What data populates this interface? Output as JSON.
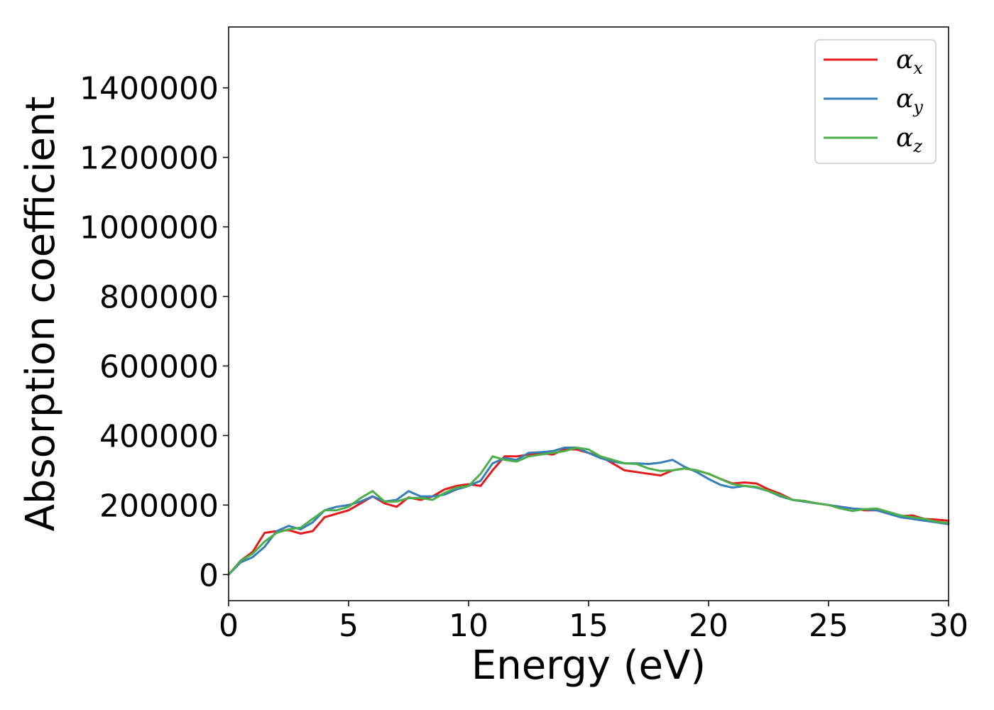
{
  "chart_data": {
    "type": "line",
    "xlabel": "Energy (eV)",
    "ylabel": "Absorption coefficient",
    "xlim": [
      0,
      30
    ],
    "ylim": [
      -75000,
      1575000
    ],
    "xticks": [
      0,
      5,
      10,
      15,
      20,
      25,
      30
    ],
    "yticks": [
      0,
      200000,
      400000,
      600000,
      800000,
      1000000,
      1200000,
      1400000
    ],
    "xtick_labels": [
      "0",
      "5",
      "10",
      "15",
      "20",
      "25",
      "30"
    ],
    "ytick_labels": [
      "0",
      "200000",
      "400000",
      "600000",
      "800000",
      "1000000",
      "1200000",
      "1400000"
    ],
    "grid": false,
    "legend_position": "top-right",
    "x": [
      0,
      0.5,
      1,
      1.5,
      2,
      2.5,
      3,
      3.5,
      4,
      4.5,
      5,
      5.5,
      6,
      6.5,
      7,
      7.5,
      8,
      8.5,
      9,
      9.5,
      10,
      10.5,
      11,
      11.5,
      12,
      12.5,
      13,
      13.5,
      14,
      14.5,
      15,
      15.5,
      16,
      16.5,
      17,
      17.5,
      18,
      18.5,
      19,
      19.5,
      20,
      20.5,
      21,
      21.5,
      22,
      22.5,
      23,
      23.5,
      24,
      24.5,
      25,
      25.5,
      26,
      26.5,
      27,
      27.5,
      28,
      28.5,
      29,
      29.5,
      30
    ],
    "series": [
      {
        "name": "α",
        "subscript": "x",
        "color": "#e41a1c",
        "values": [
          0,
          40000,
          65000,
          120000,
          125000,
          128000,
          118000,
          125000,
          165000,
          175000,
          185000,
          205000,
          225000,
          205000,
          195000,
          222000,
          215000,
          225000,
          245000,
          255000,
          260000,
          255000,
          300000,
          340000,
          340000,
          345000,
          350000,
          345000,
          360000,
          360000,
          350000,
          340000,
          320000,
          300000,
          295000,
          290000,
          285000,
          300000,
          305000,
          300000,
          290000,
          275000,
          262000,
          265000,
          262000,
          245000,
          232000,
          215000,
          210000,
          205000,
          200000,
          195000,
          190000,
          185000,
          185000,
          178000,
          168000,
          170000,
          160000,
          158000,
          155000
        ]
      },
      {
        "name": "α",
        "subscript": "y",
        "color": "#377eb8",
        "values": [
          0,
          35000,
          50000,
          80000,
          125000,
          140000,
          130000,
          150000,
          185000,
          195000,
          200000,
          210000,
          225000,
          210000,
          215000,
          240000,
          225000,
          225000,
          230000,
          245000,
          255000,
          270000,
          320000,
          335000,
          330000,
          350000,
          352000,
          355000,
          365000,
          365000,
          350000,
          335000,
          325000,
          320000,
          320000,
          318000,
          322000,
          330000,
          310000,
          295000,
          275000,
          258000,
          250000,
          255000,
          250000,
          240000,
          225000,
          215000,
          210000,
          205000,
          200000,
          195000,
          190000,
          188000,
          185000,
          175000,
          165000,
          160000,
          155000,
          150000,
          145000
        ]
      },
      {
        "name": "α",
        "subscript": "z",
        "color": "#4daf4a",
        "values": [
          0,
          40000,
          60000,
          95000,
          120000,
          130000,
          135000,
          160000,
          185000,
          185000,
          195000,
          220000,
          240000,
          210000,
          210000,
          220000,
          220000,
          215000,
          235000,
          250000,
          255000,
          290000,
          340000,
          330000,
          325000,
          340000,
          345000,
          350000,
          355000,
          365000,
          360000,
          340000,
          330000,
          320000,
          318000,
          305000,
          298000,
          300000,
          305000,
          300000,
          290000,
          275000,
          260000,
          255000,
          252000,
          240000,
          228000,
          215000,
          212000,
          205000,
          200000,
          190000,
          183000,
          188000,
          190000,
          180000,
          170000,
          165000,
          160000,
          152000,
          148000
        ]
      }
    ]
  }
}
